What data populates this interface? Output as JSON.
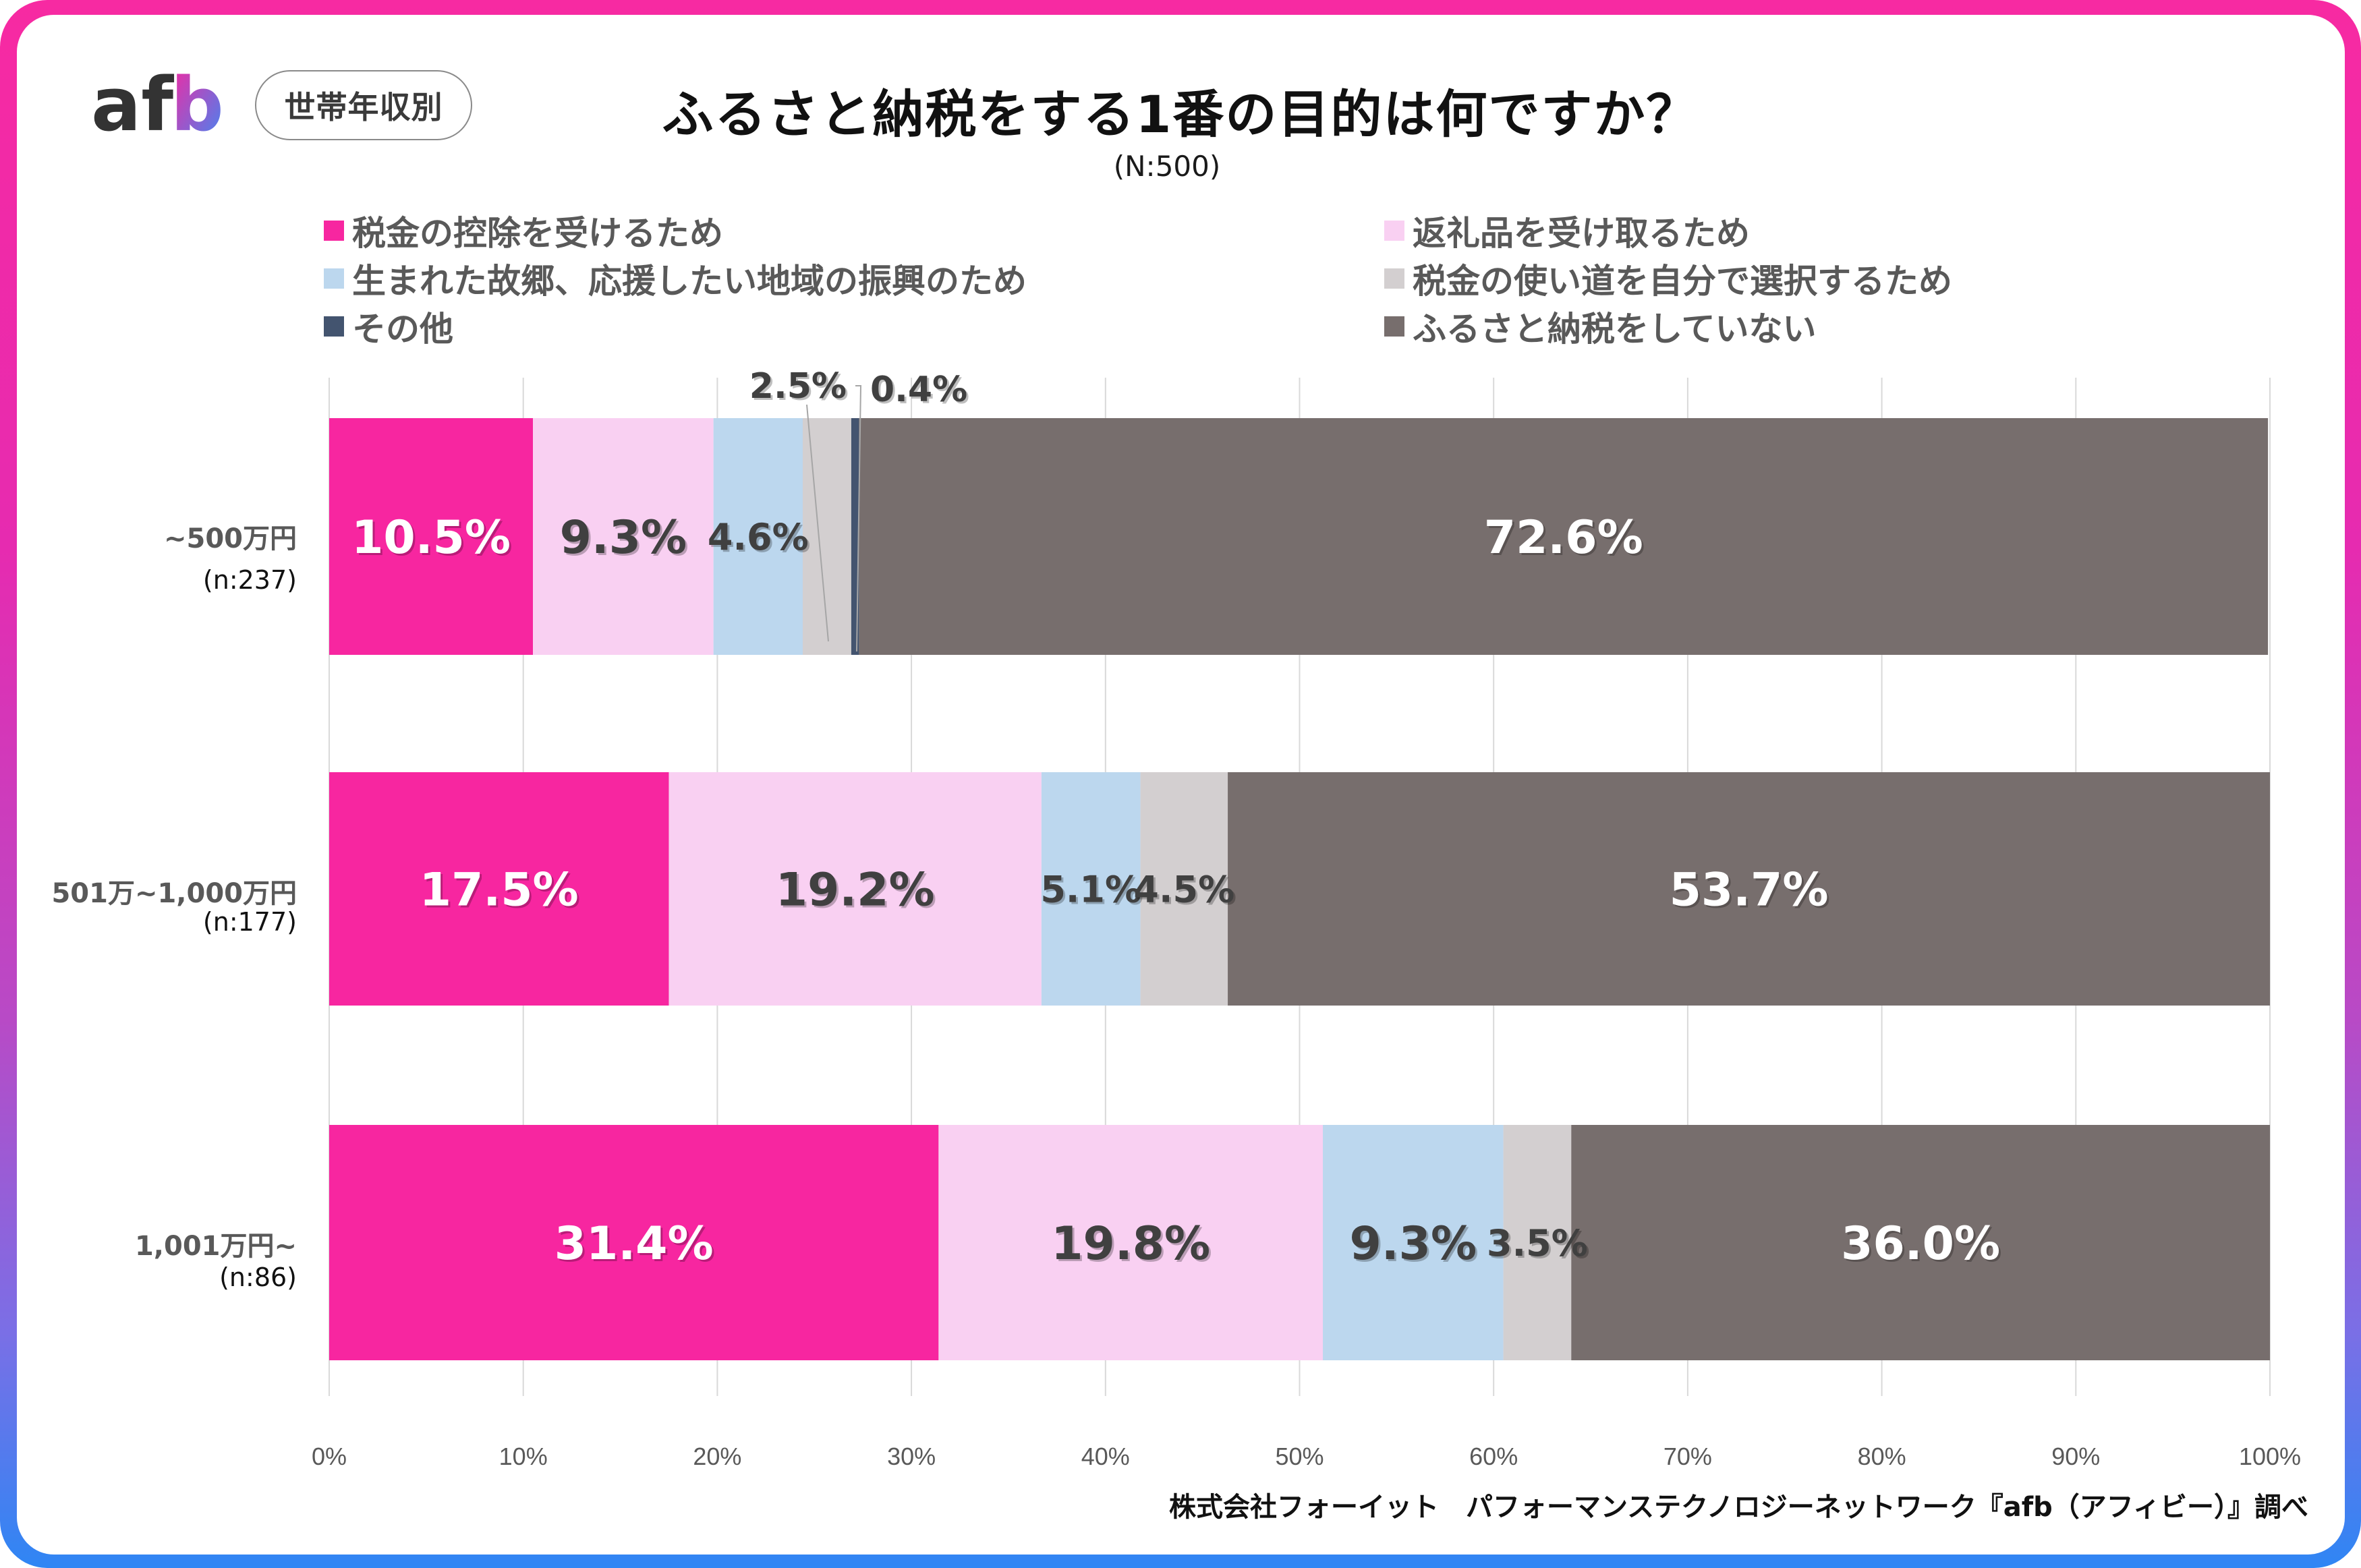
{
  "branding": {
    "logo_text": "afb",
    "segment_pill": "世帯年収別"
  },
  "header": {
    "title": "ふるさと納税をする1番の目的は何ですか？",
    "subtitle": "(N:500)"
  },
  "footer": {
    "credit": "株式会社フォーイット　パフォーマンステクノロジーネットワーク『afb（アフィビー）』調べ"
  },
  "colors": {
    "frame_gradient_top": "#f72aa2",
    "frame_gradient_bottom": "#2f86f4"
  },
  "chart_data": {
    "type": "bar",
    "orientation": "horizontal",
    "stacked": true,
    "title": "ふるさと納税をする1番の目的は何ですか？",
    "subtitle": "(N:500)",
    "xlabel": "",
    "ylabel": "",
    "xlim": [
      0,
      100
    ],
    "x_ticks": [
      "0%",
      "10%",
      "20%",
      "30%",
      "40%",
      "50%",
      "60%",
      "70%",
      "80%",
      "90%",
      "100%"
    ],
    "grid": true,
    "legend_position": "top",
    "categories": [
      {
        "label": "~500万円",
        "n": "(n:237)"
      },
      {
        "label": "501万~1,000万円",
        "n": "(n:177)"
      },
      {
        "label": "1,001万円~",
        "n": "(n:86)"
      }
    ],
    "series": [
      {
        "name": "税金の控除を受けるため",
        "color": "#f726a0",
        "label_color": "#ffffff",
        "values": [
          10.5,
          17.5,
          31.4
        ],
        "labels": [
          "10.5%",
          "17.5%",
          "31.4%"
        ]
      },
      {
        "name": "返礼品を受け取るため",
        "color": "#f9d0f2",
        "label_color": "#404040",
        "values": [
          9.3,
          19.2,
          19.8
        ],
        "labels": [
          "9.3%",
          "19.2%",
          "19.8%"
        ]
      },
      {
        "name": "生まれた故郷、応援したい地域の振興のため",
        "color": "#bcd7ee",
        "label_color": "#404040",
        "values": [
          4.6,
          5.1,
          9.3
        ],
        "labels": [
          "4.6%",
          "5.1%",
          "9.3%"
        ]
      },
      {
        "name": "税金の使い道を自分で選択するため",
        "color": "#d3cfd0",
        "label_color": "#404040",
        "values": [
          2.5,
          4.5,
          3.5
        ],
        "labels": [
          "2.5%",
          "4.5%",
          "3.5%"
        ]
      },
      {
        "name": "その他",
        "color": "#43546f",
        "label_color": "#404040",
        "values": [
          0.4,
          0.0,
          0.0
        ],
        "labels": [
          "0.4%",
          "",
          ""
        ]
      },
      {
        "name": "ふるさと納税をしていない",
        "color": "#776e6d",
        "label_color": "#ffffff",
        "values": [
          72.6,
          53.7,
          36.0
        ],
        "labels": [
          "72.6%",
          "53.7%",
          "36.0%"
        ]
      }
    ]
  }
}
